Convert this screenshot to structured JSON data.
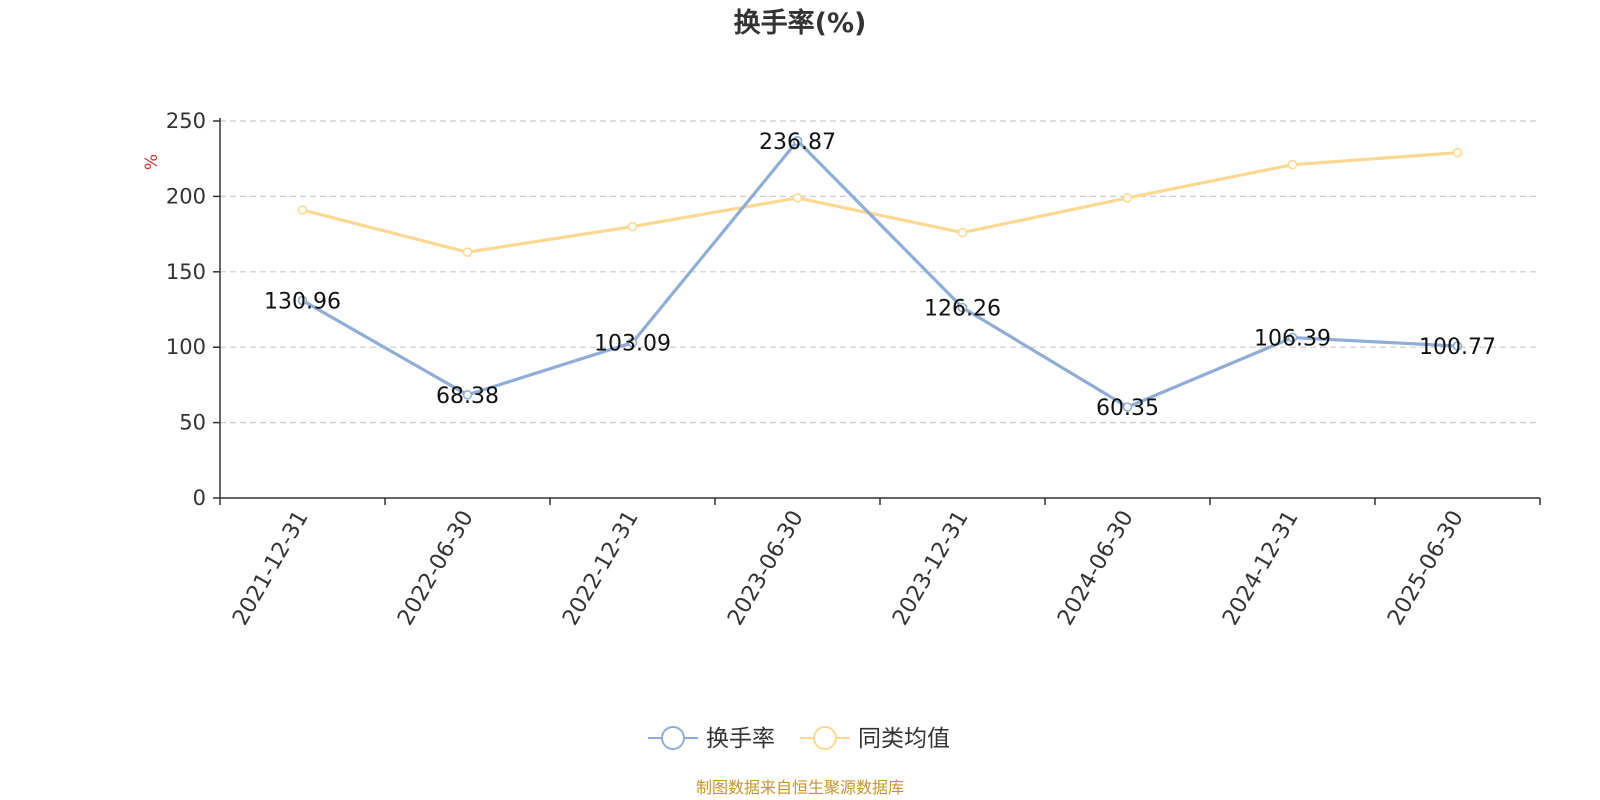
{
  "colors": {
    "series_main": "#8fadd6",
    "series_avg": "#fbd993",
    "grid": "#cccccc",
    "axis": "#333333",
    "unit": "#e03030",
    "source": "#c8952a"
  },
  "chart_data": {
    "type": "line",
    "title": "换手率(%)",
    "ylabel": "%",
    "xlabel": "",
    "ylim": [
      0,
      250
    ],
    "yticks": [
      0,
      50,
      100,
      150,
      200,
      250
    ],
    "grid": true,
    "legend_position": "bottom-center",
    "categories": [
      "2021-12-31",
      "2022-06-30",
      "2022-12-31",
      "2023-06-30",
      "2023-12-31",
      "2024-06-30",
      "2024-12-31",
      "2025-06-30"
    ],
    "series": [
      {
        "name": "换手率",
        "values": [
          130.96,
          68.38,
          103.09,
          236.87,
          126.26,
          60.35,
          106.39,
          100.77
        ],
        "labels": [
          "130.96",
          "68.38",
          "103.09",
          "236.87",
          "126.26",
          "60.35",
          "106.39",
          "100.77"
        ]
      },
      {
        "name": "同类均值",
        "values": [
          191,
          163,
          180,
          199,
          176,
          199,
          221,
          229
        ]
      }
    ]
  },
  "source_note": "制图数据来自恒生聚源数据库"
}
